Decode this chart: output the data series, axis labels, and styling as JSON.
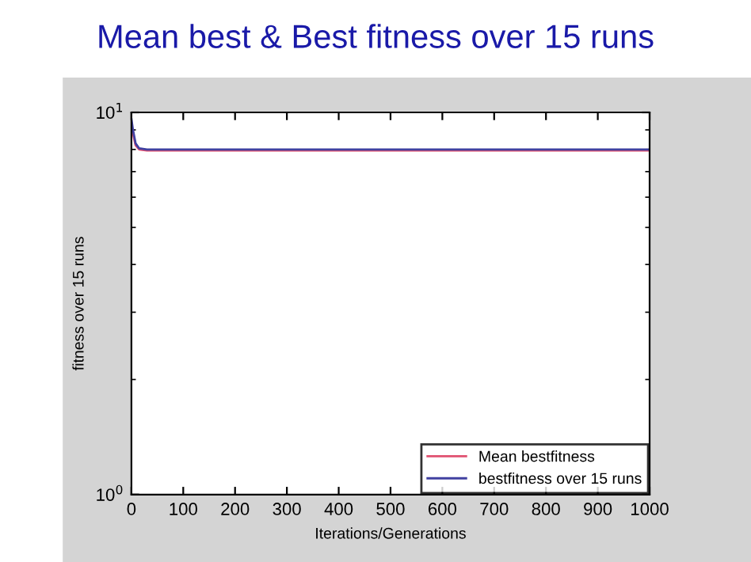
{
  "chart_data": {
    "type": "line",
    "title": "Mean best & Best fitness over 15 runs",
    "xlabel": "Iterations/Generations",
    "ylabel": "fitness over 15 runs",
    "log": "y",
    "xlim": [
      0,
      1000
    ],
    "ylim": [
      1,
      10
    ],
    "xticks": [
      0,
      100,
      200,
      300,
      400,
      500,
      600,
      700,
      800,
      900,
      1000
    ],
    "yticks": [
      {
        "value": 1,
        "label": "10$^{0}$"
      },
      {
        "value": 10,
        "label": "10$^{1}$"
      }
    ],
    "legend": "bottom right",
    "grid": false,
    "series": [
      {
        "name": "Mean bestfitness",
        "color": "#e05070",
        "x": [
          0,
          3,
          8,
          15,
          30,
          60,
          1000
        ],
        "values": [
          9.3,
          8.8,
          8.2,
          8.0,
          7.95,
          7.95,
          7.95
        ]
      },
      {
        "name": "bestfitness over 15 runs",
        "color": "#4040a0",
        "x": [
          0,
          3,
          8,
          15,
          30,
          60,
          1000
        ],
        "values": [
          9.6,
          9.0,
          8.3,
          8.05,
          8.0,
          8.0,
          8.0
        ]
      }
    ]
  }
}
